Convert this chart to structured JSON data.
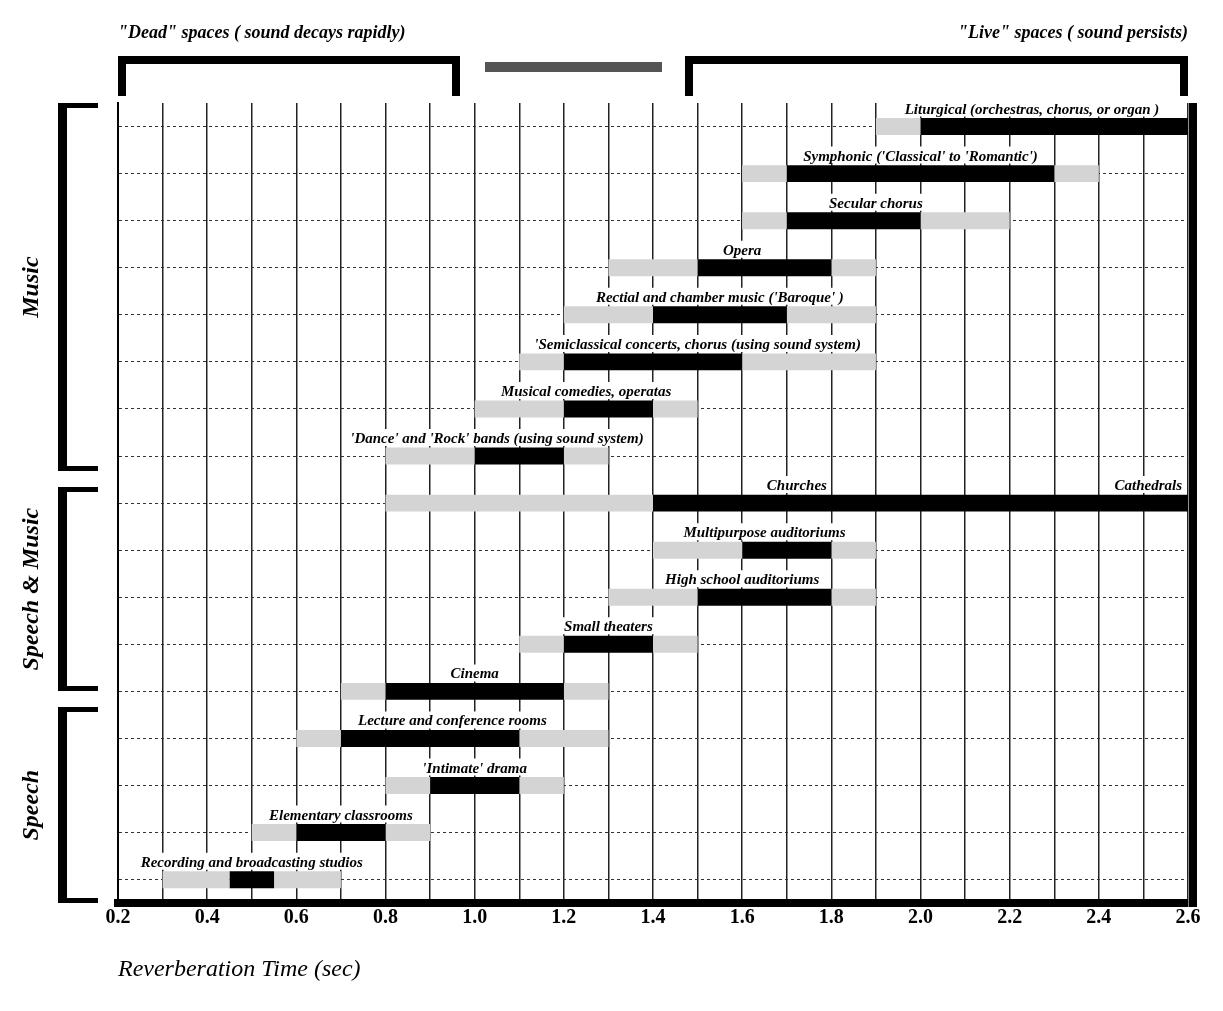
{
  "chart_data": {
    "type": "bar",
    "orientation": "horizontal",
    "xlabel": "Reverberation Time (sec)",
    "categories": [
      "Liturgical (orchestras, chorus, or organ )",
      "Symphonic ('Classical' to 'Romantic')",
      "Secular chorus",
      "Opera",
      "Rectial and chamber music ('Baroque' )",
      "'Semiclassical concerts, chorus (using sound system)",
      "Musical comedies, operatas",
      "'Dance' and 'Rock' bands (using sound system)",
      "Churches",
      "Multipurpose auditoriums",
      "High school auditoriums",
      "Small theaters",
      "Cinema",
      "Lecture and conference rooms",
      "'Intimate' drama",
      "Elementary classrooms",
      "Recording and broadcasting studios"
    ],
    "series": [
      {
        "color": "#d4d4d4",
        "base": [
          1.9,
          1.6,
          1.6,
          1.3,
          1.2,
          1.1,
          1.0,
          0.8,
          0.8,
          1.4,
          1.3,
          1.1,
          0.7,
          0.6,
          0.8,
          0.5,
          0.3
        ],
        "values": [
          0.1,
          0.1,
          0.1,
          0.2,
          0.2,
          0.1,
          0.2,
          0.2,
          0.6,
          0.2,
          0.2,
          0.1,
          0.1,
          0.1,
          0.1,
          0.1,
          0.15
        ]
      },
      {
        "color": "#000000",
        "base": [
          2.0,
          1.7,
          1.7,
          1.5,
          1.4,
          1.2,
          1.2,
          1.0,
          1.4,
          1.6,
          1.5,
          1.2,
          0.8,
          0.7,
          0.9,
          0.6,
          0.45
        ],
        "values": [
          0.6,
          0.6,
          0.3,
          0.3,
          0.3,
          0.4,
          0.2,
          0.2,
          1.2,
          0.2,
          0.3,
          0.2,
          0.4,
          0.4,
          0.2,
          0.2,
          0.1
        ]
      },
      {
        "color": "#d4d4d4",
        "base": [
          null,
          2.3,
          2.0,
          1.8,
          1.7,
          1.6,
          1.4,
          1.2,
          null,
          1.8,
          1.8,
          1.4,
          1.2,
          1.1,
          1.1,
          0.8,
          0.55
        ],
        "values": [
          null,
          0.1,
          0.2,
          0.1,
          0.2,
          0.3,
          0.1,
          0.1,
          null,
          0.1,
          0.1,
          0.1,
          0.1,
          0.2,
          0.1,
          0.1,
          0.15
        ]
      }
    ],
    "xlim": [
      0.2,
      2.6
    ],
    "xticks": [
      0.2,
      {
        "value": 0.3,
        "label": null
      },
      0.4,
      {
        "value": 0.5,
        "label": null
      },
      0.6,
      {
        "value": 0.7,
        "label": null
      },
      0.8,
      {
        "value": 0.9,
        "label": null
      },
      {
        "value": 1.0,
        "label": "1.0"
      },
      {
        "value": 1.1,
        "label": null
      },
      1.2,
      {
        "value": 1.3,
        "label": null
      },
      1.4,
      {
        "value": 1.5,
        "label": null
      },
      1.6,
      {
        "value": 1.7,
        "label": null
      },
      1.8,
      {
        "value": 1.9,
        "label": null
      },
      {
        "value": 2.0,
        "label": "2.0"
      },
      {
        "value": 2.1,
        "label": null
      },
      2.2,
      {
        "value": 2.3,
        "label": null
      },
      2.4,
      {
        "value": 2.5,
        "label": null
      },
      2.6
    ],
    "grid": true,
    "tick_labels": "x",
    "annotations": [
      "\"Dead\" spaces ( sound decays rapidly)",
      "\"Live\" spaces ( sound persists)",
      "Music",
      "Speech & Music",
      "Speech",
      "Cathedrals"
    ]
  }
}
